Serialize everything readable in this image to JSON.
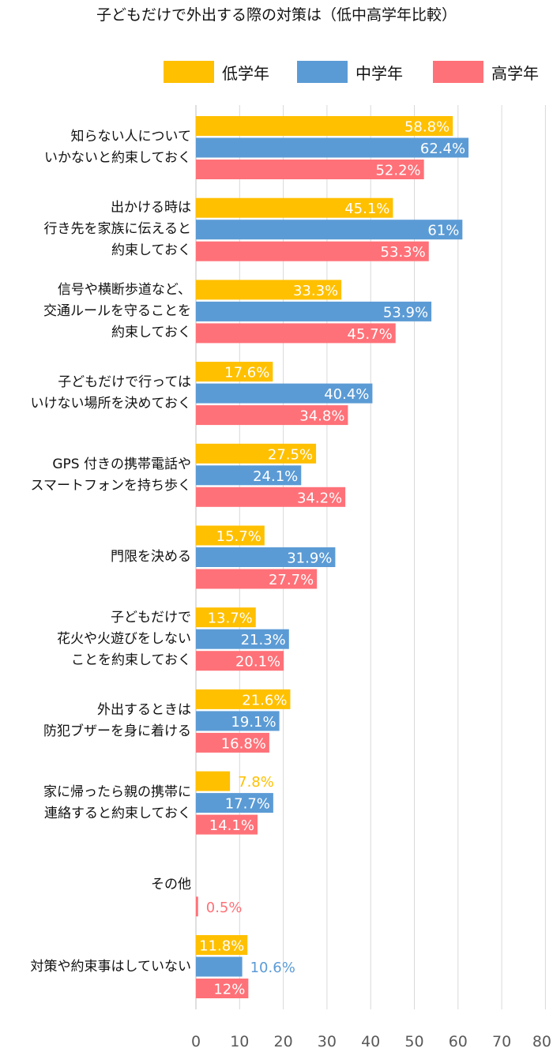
{
  "chart_data": {
    "type": "bar",
    "orientation": "horizontal",
    "title": "子どもだけで外出する際の対策は（低中高学年比較）",
    "legend_position": "top-right",
    "grid": true,
    "xlim": [
      0,
      80
    ],
    "xticks": [
      "0",
      "10",
      "20",
      "30",
      "40",
      "50",
      "60",
      "70",
      "80"
    ],
    "categories": [
      [
        "知らない人について",
        "いかないと約束しておく"
      ],
      [
        "出かける時は",
        "行き先を家族に伝えると",
        "約束しておく"
      ],
      [
        "信号や横断歩道など、",
        "交通ルールを守ることを",
        "約束しておく"
      ],
      [
        "子どもだけで行っては",
        "いけない場所を決めておく"
      ],
      [
        "GPS 付きの携帯電話や",
        "スマートフォンを持ち歩く"
      ],
      [
        "門限を決める"
      ],
      [
        "子どもだけで",
        "花火や火遊びをしない",
        "ことを約束しておく"
      ],
      [
        "外出するときは",
        "防犯ブザーを身に着ける"
      ],
      [
        "家に帰ったら親の携帯に",
        "連絡すると約束しておく"
      ],
      [
        "その他"
      ],
      [
        "対策や約束事はしていない"
      ]
    ],
    "series": [
      {
        "name": "低学年",
        "color": "#FFC000",
        "values": [
          58.8,
          45.1,
          33.3,
          17.6,
          27.5,
          15.7,
          13.7,
          21.6,
          7.8,
          null,
          11.8
        ],
        "labels": [
          "58.8%",
          "45.1%",
          "33.3%",
          "17.6%",
          "27.5%",
          "15.7%",
          "13.7%",
          "21.6%",
          "7.8%",
          "",
          "11.8%"
        ]
      },
      {
        "name": "中学年",
        "color": "#5B9BD5",
        "values": [
          62.4,
          61,
          53.9,
          40.4,
          24.1,
          31.9,
          21.3,
          19.1,
          17.7,
          null,
          10.6
        ],
        "labels": [
          "62.4%",
          "61%",
          "53.9%",
          "40.4%",
          "24.1%",
          "31.9%",
          "21.3%",
          "19.1%",
          "17.7%",
          "",
          "10.6%"
        ]
      },
      {
        "name": "高学年",
        "color": "#FF7178",
        "values": [
          52.2,
          53.3,
          45.7,
          34.8,
          34.2,
          27.7,
          20.1,
          16.8,
          14.1,
          0.5,
          12
        ],
        "labels": [
          "52.2%",
          "53.3%",
          "45.7%",
          "34.8%",
          "34.2%",
          "27.7%",
          "20.1%",
          "16.8%",
          "14.1%",
          "0.5%",
          "12%"
        ]
      }
    ]
  }
}
